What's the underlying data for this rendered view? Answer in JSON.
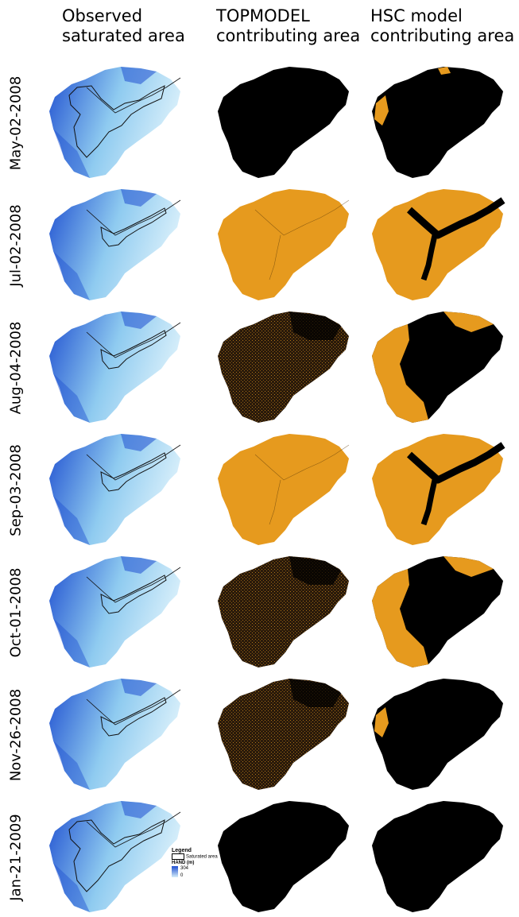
{
  "columns": [
    {
      "line1": "Observed",
      "line2": "saturated area"
    },
    {
      "line1": "TOPMODEL",
      "line2": "contributing area"
    },
    {
      "line1": "HSC model",
      "line2": "contributing area"
    }
  ],
  "rows": [
    {
      "date": "May-02-2008",
      "topmodel": "black",
      "hsc": "mostly-black"
    },
    {
      "date": "Jul-02-2008",
      "topmodel": "orange",
      "hsc": "orange-with-channel"
    },
    {
      "date": "Aug-04-2008",
      "topmodel": "speckled",
      "hsc": "half"
    },
    {
      "date": "Sep-03-2008",
      "topmodel": "orange",
      "hsc": "orange-with-channel"
    },
    {
      "date": "Oct-01-2008",
      "topmodel": "speckled",
      "hsc": "half"
    },
    {
      "date": "Nov-26-2008",
      "topmodel": "speckled",
      "hsc": "mostly-black"
    },
    {
      "date": "Jan-21-2009",
      "topmodel": "black",
      "hsc": "black"
    }
  ],
  "legend": {
    "title": "Legend",
    "saturated_label": "Saturated area",
    "hand_label": "HAND (m)",
    "hand_max": "304",
    "hand_min": "0"
  },
  "colors": {
    "orange": "#e69a1e",
    "black": "#000000",
    "hand_low": "#d6eefa",
    "hand_high": "#1f4fd0"
  }
}
